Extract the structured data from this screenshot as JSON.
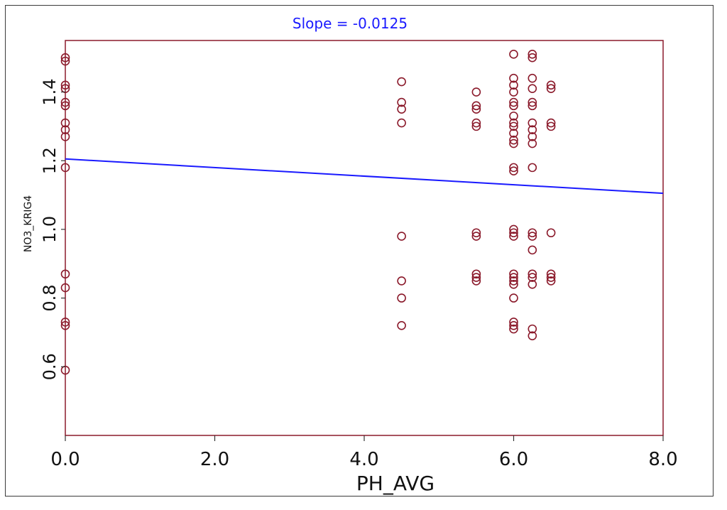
{
  "chart_data": {
    "type": "scatter",
    "title": "Slope = -0.0125",
    "xlabel": "PH_AVG",
    "ylabel": "NO3_KRIG4",
    "xlim": [
      0,
      8
    ],
    "ylim": [
      0.4,
      1.55
    ],
    "x_ticks": [
      "0.0",
      "2.0",
      "4.0",
      "6.0",
      "8.0"
    ],
    "y_ticks": [
      "0.6",
      "0.8",
      "1.0",
      "1.2",
      "1.4"
    ],
    "grid": false,
    "colors": {
      "points": "#8b1a2b",
      "frame": "#8b1a2b",
      "trend": "#1a1aff",
      "title": "#1a1aff"
    },
    "trend_line": {
      "x": [
        0,
        8
      ],
      "y": [
        1.205,
        1.105
      ]
    },
    "points": [
      {
        "x": 0,
        "y": 1.5
      },
      {
        "x": 0,
        "y": 1.49
      },
      {
        "x": 0,
        "y": 1.42
      },
      {
        "x": 0,
        "y": 1.41
      },
      {
        "x": 0,
        "y": 1.37
      },
      {
        "x": 0,
        "y": 1.36
      },
      {
        "x": 0,
        "y": 1.31
      },
      {
        "x": 0,
        "y": 1.29
      },
      {
        "x": 0,
        "y": 1.27
      },
      {
        "x": 0,
        "y": 1.18
      },
      {
        "x": 0,
        "y": 0.87
      },
      {
        "x": 0,
        "y": 0.83
      },
      {
        "x": 0,
        "y": 0.73
      },
      {
        "x": 0,
        "y": 0.72
      },
      {
        "x": 0,
        "y": 0.59
      },
      {
        "x": 4.5,
        "y": 1.43
      },
      {
        "x": 4.5,
        "y": 1.37
      },
      {
        "x": 4.5,
        "y": 1.35
      },
      {
        "x": 4.5,
        "y": 1.31
      },
      {
        "x": 4.5,
        "y": 0.98
      },
      {
        "x": 4.5,
        "y": 0.85
      },
      {
        "x": 4.5,
        "y": 0.8
      },
      {
        "x": 4.5,
        "y": 0.72
      },
      {
        "x": 5.5,
        "y": 1.4
      },
      {
        "x": 5.5,
        "y": 1.36
      },
      {
        "x": 5.5,
        "y": 1.35
      },
      {
        "x": 5.5,
        "y": 1.31
      },
      {
        "x": 5.5,
        "y": 1.3
      },
      {
        "x": 5.5,
        "y": 0.99
      },
      {
        "x": 5.5,
        "y": 0.98
      },
      {
        "x": 5.5,
        "y": 0.87
      },
      {
        "x": 5.5,
        "y": 0.86
      },
      {
        "x": 5.5,
        "y": 0.85
      },
      {
        "x": 6.0,
        "y": 1.51
      },
      {
        "x": 6.0,
        "y": 1.44
      },
      {
        "x": 6.0,
        "y": 1.42
      },
      {
        "x": 6.0,
        "y": 1.4
      },
      {
        "x": 6.0,
        "y": 1.37
      },
      {
        "x": 6.0,
        "y": 1.36
      },
      {
        "x": 6.0,
        "y": 1.33
      },
      {
        "x": 6.0,
        "y": 1.31
      },
      {
        "x": 6.0,
        "y": 1.3
      },
      {
        "x": 6.0,
        "y": 1.28
      },
      {
        "x": 6.0,
        "y": 1.26
      },
      {
        "x": 6.0,
        "y": 1.25
      },
      {
        "x": 6.0,
        "y": 1.18
      },
      {
        "x": 6.0,
        "y": 1.17
      },
      {
        "x": 6.0,
        "y": 1.0
      },
      {
        "x": 6.0,
        "y": 0.99
      },
      {
        "x": 6.0,
        "y": 0.98
      },
      {
        "x": 6.0,
        "y": 0.87
      },
      {
        "x": 6.0,
        "y": 0.86
      },
      {
        "x": 6.0,
        "y": 0.85
      },
      {
        "x": 6.0,
        "y": 0.84
      },
      {
        "x": 6.0,
        "y": 0.8
      },
      {
        "x": 6.0,
        "y": 0.73
      },
      {
        "x": 6.0,
        "y": 0.72
      },
      {
        "x": 6.0,
        "y": 0.71
      },
      {
        "x": 6.25,
        "y": 1.51
      },
      {
        "x": 6.25,
        "y": 1.5
      },
      {
        "x": 6.25,
        "y": 1.44
      },
      {
        "x": 6.25,
        "y": 1.41
      },
      {
        "x": 6.25,
        "y": 1.37
      },
      {
        "x": 6.25,
        "y": 1.36
      },
      {
        "x": 6.25,
        "y": 1.31
      },
      {
        "x": 6.25,
        "y": 1.29
      },
      {
        "x": 6.25,
        "y": 1.27
      },
      {
        "x": 6.25,
        "y": 1.25
      },
      {
        "x": 6.25,
        "y": 1.18
      },
      {
        "x": 6.25,
        "y": 0.99
      },
      {
        "x": 6.25,
        "y": 0.98
      },
      {
        "x": 6.25,
        "y": 0.94
      },
      {
        "x": 6.25,
        "y": 0.87
      },
      {
        "x": 6.25,
        "y": 0.86
      },
      {
        "x": 6.25,
        "y": 0.84
      },
      {
        "x": 6.25,
        "y": 0.71
      },
      {
        "x": 6.25,
        "y": 0.69
      },
      {
        "x": 6.5,
        "y": 1.42
      },
      {
        "x": 6.5,
        "y": 1.41
      },
      {
        "x": 6.5,
        "y": 1.31
      },
      {
        "x": 6.5,
        "y": 1.3
      },
      {
        "x": 6.5,
        "y": 0.99
      },
      {
        "x": 6.5,
        "y": 0.87
      },
      {
        "x": 6.5,
        "y": 0.86
      },
      {
        "x": 6.5,
        "y": 0.85
      }
    ]
  }
}
